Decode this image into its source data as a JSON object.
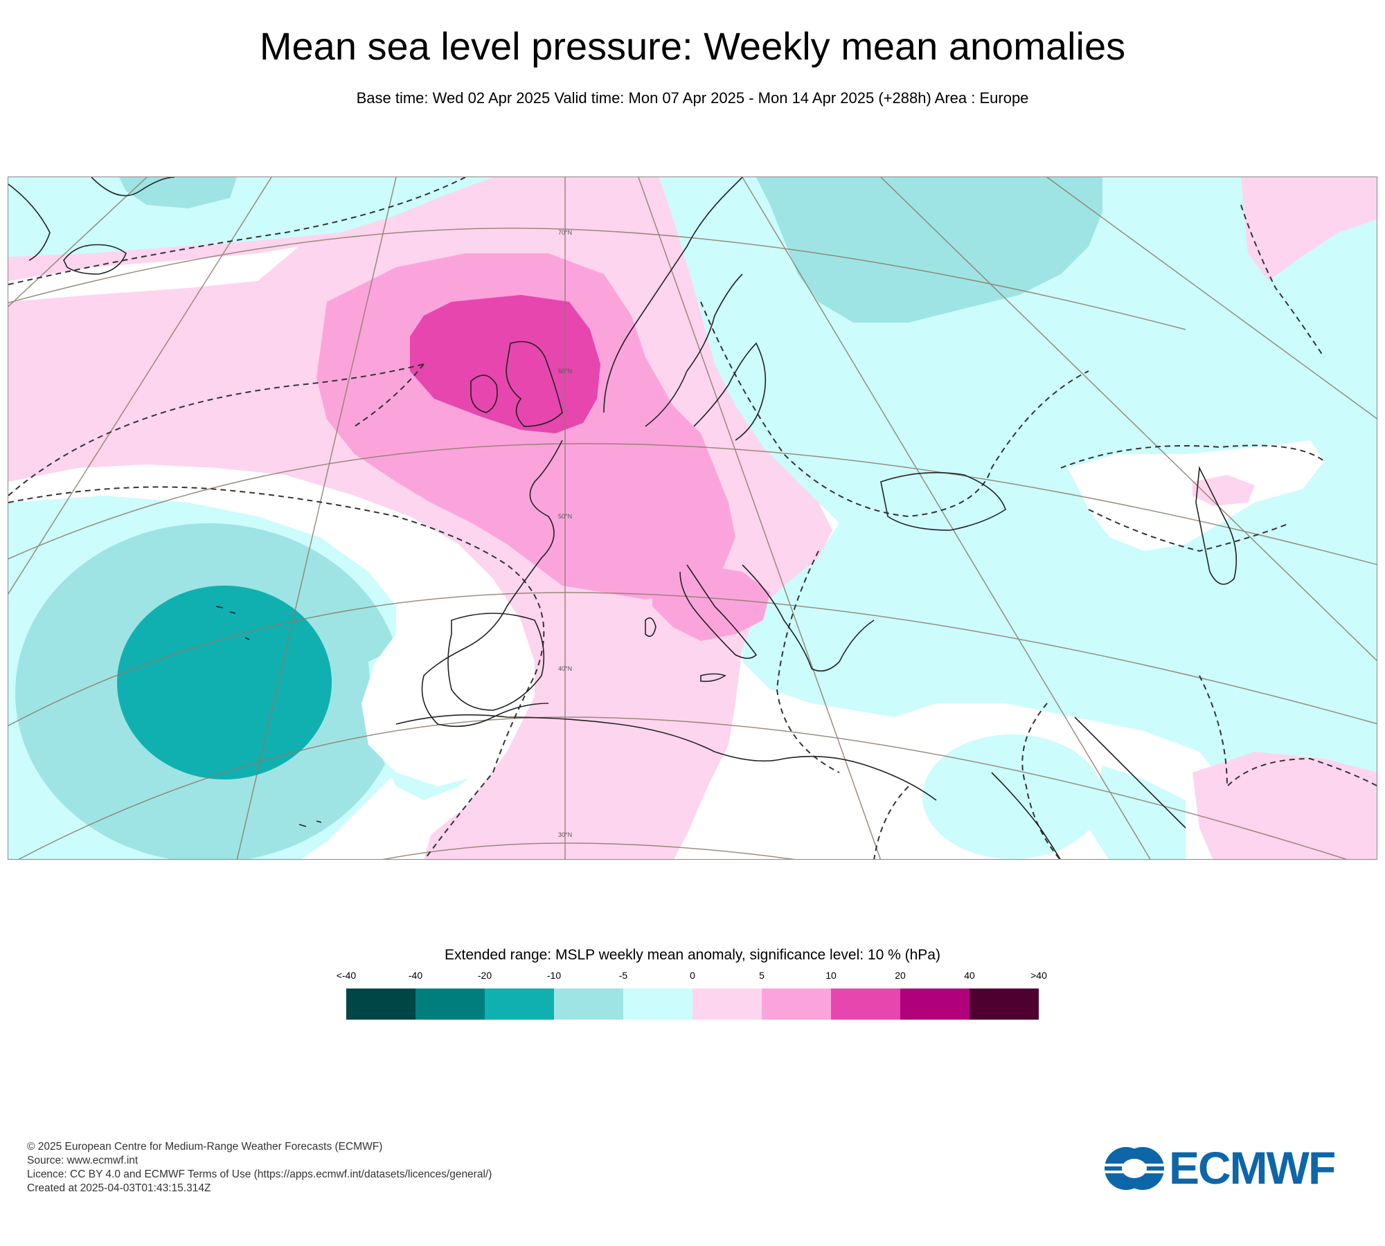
{
  "header": {
    "title": "Mean sea level pressure: Weekly mean anomalies",
    "subtitle": "Base time: Wed 02 Apr 2025 Valid time: Mon 07 Apr 2025 - Mon 14 Apr 2025 (+288h) Area : Europe"
  },
  "map": {
    "lat_labels": [
      "70°N",
      "60°N",
      "50°N",
      "40°N",
      "30°N"
    ],
    "colors": {
      "land_outline": "#222222",
      "graticule": "#8b7b6a",
      "anomaly_neg_5_0": "#ccfcfc",
      "anomaly_neg_10_5": "#9fe4e4",
      "anomaly_neg_20_10": "#10b0b0",
      "anomaly_0_5": "#fdd5ee",
      "anomaly_5_10": "#fba4dc",
      "anomaly_10_20": "#e646ae"
    }
  },
  "legend": {
    "title": "Extended range: MSLP weekly mean anomaly, significance level: 10 % (hPa)",
    "ticks": [
      "<-40",
      "-40",
      "-20",
      "-10",
      "-5",
      "0",
      "5",
      "10",
      "20",
      "40",
      ">40"
    ],
    "colors": [
      "#004646",
      "#007e7e",
      "#10b0b0",
      "#9fe4e4",
      "#ccfcfc",
      "#fdd5ee",
      "#fba4dc",
      "#e646ae",
      "#b0007a",
      "#4e0030"
    ]
  },
  "footer": {
    "copyright": "© 2025 European Centre for Medium-Range Weather Forecasts (ECMWF)",
    "source": "Source: www.ecmwf.int",
    "licence": "Licence: CC BY 4.0 and ECMWF Terms of Use (https://apps.ecmwf.int/datasets/licences/general/)",
    "created": "Created at 2025-04-03T01:43:15.314Z"
  },
  "logo": {
    "text": "ECMWF",
    "color": "#0d66a8"
  }
}
